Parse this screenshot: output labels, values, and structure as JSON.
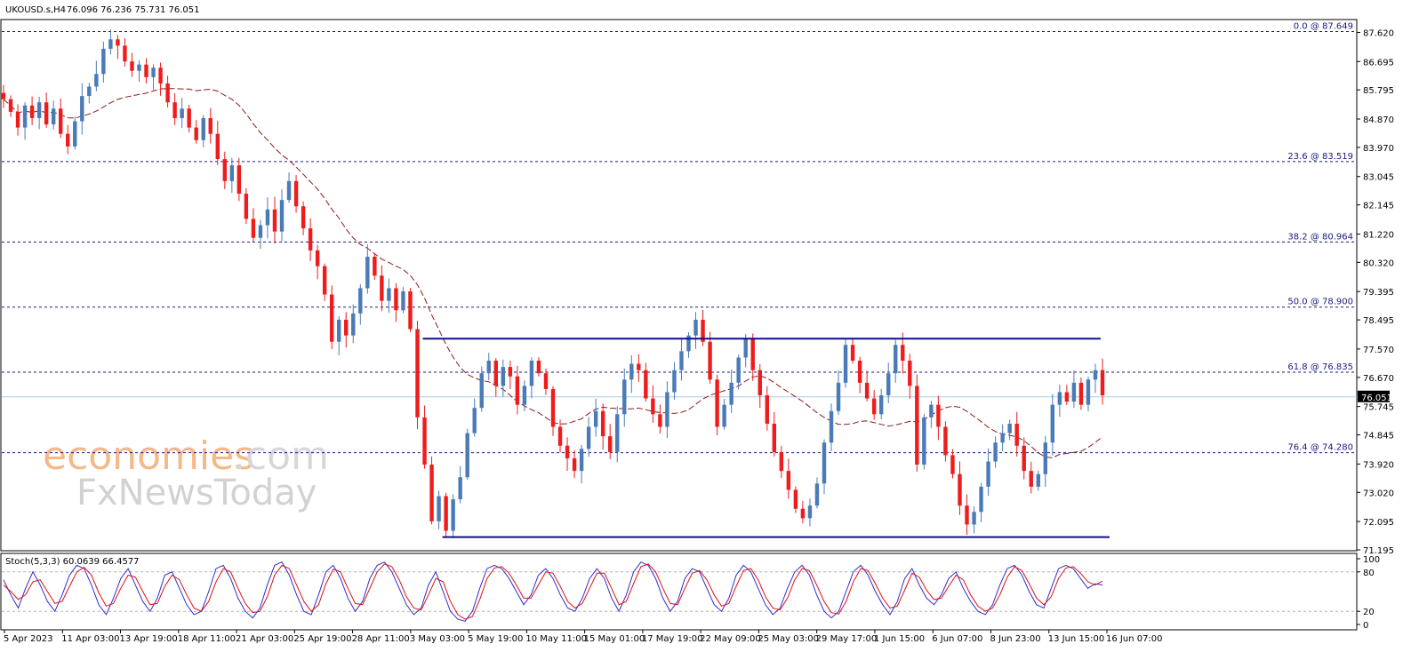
{
  "header": {
    "symbol": "UKOUSD.s,H4",
    "ohlc": "76.096 76.236 75.731 76.051"
  },
  "watermark": {
    "brand_part1": "economies",
    "brand_part2": ".com",
    "brand_line2": "FxNewsToday"
  },
  "colors": {
    "bull": "#4a7bb7",
    "bear": "#ee1c1c",
    "ma": "#8b1a1a",
    "fib": "#1a1a80",
    "channel": "#0d0d8a",
    "stoch_main": "#2f2fd0",
    "stoch_signal": "#e01010",
    "current_line": "#a8cde0"
  },
  "chart_data": [
    {
      "type": "candlestick",
      "title": "UKOUSD.s,H4",
      "ylim": [
        71.195,
        88.0
      ],
      "y_ticks": [
        "87.620",
        "86.695",
        "85.795",
        "84.870",
        "83.970",
        "83.045",
        "82.145",
        "81.220",
        "80.320",
        "79.395",
        "78.495",
        "77.570",
        "76.670",
        "75.745",
        "74.845",
        "73.920",
        "73.020",
        "72.095",
        "71.195"
      ],
      "x_ticks": [
        "5 Apr 2023",
        "11 Apr 03:00",
        "13 Apr 19:00",
        "18 Apr 11:00",
        "21 Apr 03:00",
        "25 Apr 19:00",
        "28 Apr 11:00",
        "3 May 03:00",
        "5 May 19:00",
        "10 May 11:00",
        "15 May 01:00",
        "17 May 19:00",
        "22 May 09:00",
        "25 May 03:00",
        "29 May 17:00",
        "1 Jun 15:00",
        "6 Jun 07:00",
        "8 Jun 23:00",
        "13 Jun 15:00",
        "16 Jun 07:00"
      ],
      "current_price": "76.051",
      "last_ohlc": [
        76.096,
        76.236,
        75.731,
        76.051
      ],
      "fib_levels": [
        {
          "label": "0.0 @ 87.649",
          "value": 87.649
        },
        {
          "label": "23.6 @ 83.519",
          "value": 83.519
        },
        {
          "label": "38.2 @ 80.964",
          "value": 80.964
        },
        {
          "label": "50.0 @ 78.900",
          "value": 78.9
        },
        {
          "label": "61.8 @ 76.835",
          "value": 76.835
        },
        {
          "label": "76.4 @ 74.280",
          "value": 74.28
        }
      ],
      "channel_lines": [
        {
          "name": "resistance",
          "value": 77.9
        },
        {
          "name": "support",
          "value": 71.6
        }
      ],
      "closes": [
        85.5,
        85.1,
        84.6,
        85.3,
        84.9,
        85.4,
        84.7,
        85.2,
        84.4,
        84.0,
        84.8,
        85.6,
        85.9,
        86.3,
        87.1,
        87.4,
        87.2,
        86.7,
        86.4,
        86.6,
        86.2,
        86.5,
        86.0,
        85.4,
        84.9,
        85.2,
        84.6,
        84.2,
        84.9,
        84.4,
        83.6,
        82.9,
        83.4,
        82.5,
        81.7,
        81.1,
        81.5,
        82.0,
        81.3,
        82.3,
        82.9,
        82.1,
        81.4,
        80.7,
        80.2,
        79.3,
        77.8,
        78.5,
        78.0,
        78.7,
        79.5,
        80.5,
        79.9,
        79.1,
        79.5,
        78.8,
        79.4,
        78.2,
        75.4,
        73.9,
        72.1,
        72.9,
        71.8,
        72.8,
        73.5,
        74.9,
        75.7,
        76.8,
        77.2,
        76.4,
        77.0,
        76.7,
        75.8,
        76.4,
        77.2,
        76.8,
        76.3,
        75.1,
        74.5,
        74.1,
        73.7,
        74.4,
        75.1,
        75.6,
        74.8,
        74.3,
        75.5,
        76.6,
        77.1,
        76.9,
        76.0,
        75.5,
        75.1,
        76.2,
        76.9,
        77.5,
        78.0,
        78.5,
        77.8,
        76.6,
        75.1,
        75.8,
        76.5,
        77.3,
        77.9,
        76.9,
        76.1,
        75.2,
        74.3,
        73.7,
        73.1,
        72.5,
        72.2,
        72.6,
        73.3,
        74.6,
        75.6,
        76.5,
        77.7,
        77.2,
        76.5,
        76.0,
        75.5,
        76.1,
        76.8,
        77.7,
        77.2,
        76.4,
        73.9,
        75.4,
        75.8,
        75.1,
        74.2,
        73.6,
        72.6,
        72.0,
        72.4,
        73.2,
        74.0,
        74.6,
        74.9,
        75.2,
        74.5,
        73.7,
        73.2,
        73.6,
        74.6,
        75.8,
        76.2,
        75.9,
        76.5,
        75.8,
        76.6,
        76.9,
        76.1
      ]
    },
    {
      "type": "line",
      "title": "Stoch(5,3,3) 60.0639 66.4577",
      "ylim": [
        0,
        100
      ],
      "y_ticks": [
        "100",
        "80",
        "20",
        "0"
      ],
      "levels": [
        80,
        20
      ],
      "series": [
        {
          "name": "main",
          "values": [
            68,
            45,
            25,
            55,
            80,
            60,
            35,
            20,
            45,
            75,
            90,
            85,
            60,
            30,
            15,
            40,
            70,
            85,
            60,
            35,
            20,
            40,
            75,
            80,
            55,
            30,
            15,
            20,
            50,
            85,
            90,
            70,
            40,
            20,
            10,
            25,
            60,
            90,
            95,
            75,
            45,
            20,
            15,
            45,
            80,
            90,
            70,
            40,
            20,
            35,
            70,
            90,
            95,
            80,
            55,
            30,
            15,
            25,
            60,
            80,
            50,
            20,
            8,
            5,
            20,
            55,
            85,
            90,
            85,
            70,
            50,
            30,
            45,
            75,
            85,
            70,
            45,
            25,
            20,
            40,
            70,
            85,
            70,
            40,
            20,
            45,
            80,
            95,
            90,
            70,
            40,
            20,
            35,
            70,
            85,
            80,
            55,
            30,
            20,
            40,
            75,
            90,
            80,
            55,
            30,
            15,
            25,
            55,
            80,
            90,
            75,
            45,
            20,
            10,
            20,
            50,
            80,
            90,
            75,
            50,
            30,
            15,
            35,
            70,
            85,
            60,
            40,
            30,
            45,
            70,
            80,
            55,
            35,
            20,
            15,
            30,
            60,
            85,
            90,
            75,
            50,
            30,
            25,
            55,
            85,
            90,
            85,
            70,
            55,
            62,
            60
          ]
        },
        {
          "name": "signal",
          "values": [
            60,
            50,
            38,
            45,
            65,
            68,
            50,
            32,
            35,
            58,
            80,
            87,
            75,
            48,
            28,
            32,
            55,
            75,
            72,
            50,
            30,
            32,
            58,
            75,
            68,
            45,
            25,
            20,
            35,
            65,
            85,
            80,
            55,
            32,
            18,
            20,
            42,
            75,
            90,
            85,
            60,
            35,
            20,
            30,
            62,
            84,
            80,
            55,
            32,
            30,
            55,
            80,
            92,
            88,
            68,
            42,
            25,
            22,
            45,
            70,
            65,
            35,
            15,
            8,
            12,
            38,
            70,
            86,
            88,
            78,
            60,
            40,
            40,
            60,
            80,
            78,
            58,
            35,
            25,
            32,
            55,
            78,
            78,
            55,
            30,
            35,
            62,
            88,
            92,
            80,
            55,
            32,
            30,
            55,
            78,
            82,
            68,
            45,
            28,
            32,
            58,
            82,
            85,
            68,
            42,
            25,
            22,
            40,
            68,
            85,
            82,
            60,
            35,
            18,
            16,
            35,
            65,
            85,
            82,
            62,
            40,
            25,
            28,
            52,
            78,
            72,
            52,
            38,
            40,
            58,
            75,
            68,
            45,
            28,
            20,
            25,
            45,
            72,
            88,
            82,
            62,
            40,
            30,
            42,
            70,
            86,
            88,
            78,
            65,
            60,
            66
          ]
        }
      ]
    }
  ]
}
